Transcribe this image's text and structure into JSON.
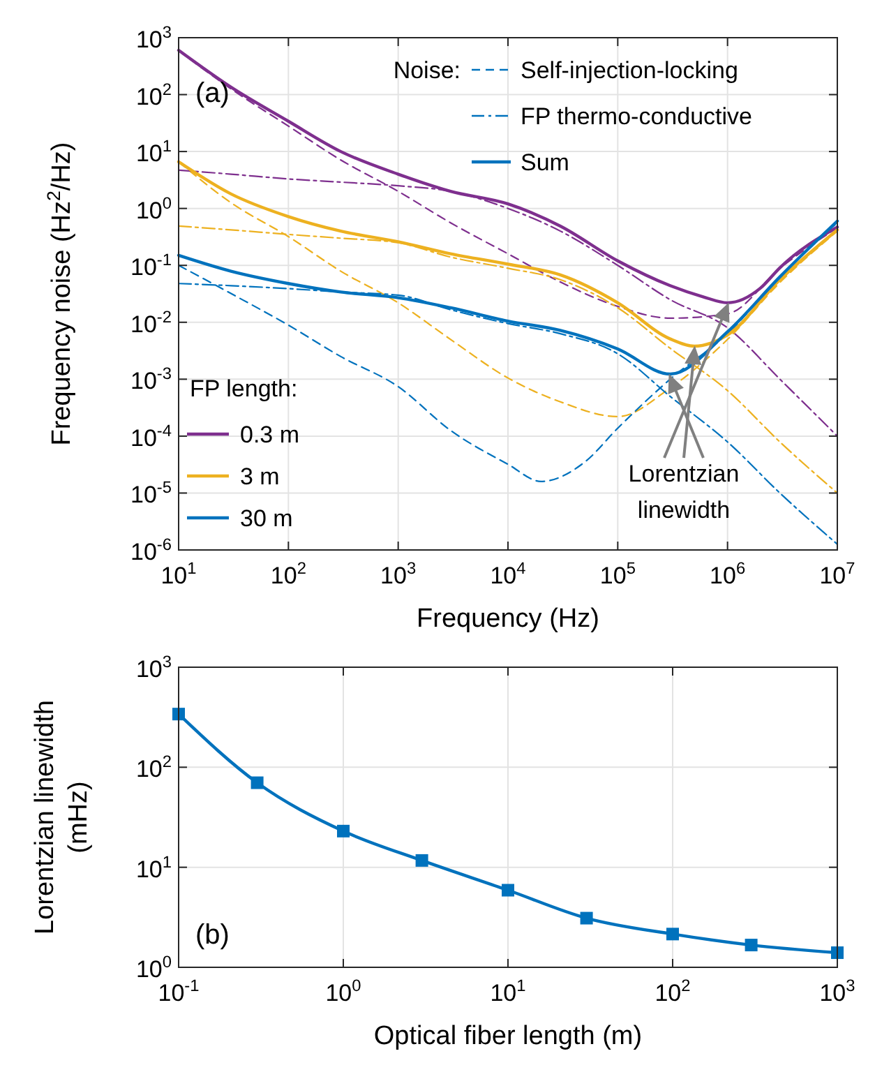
{
  "chart_data": [
    {
      "type": "line",
      "xlabel": "Frequency (Hz)",
      "ylabel": "Frequency noise (Hz$^{2}$/Hz)",
      "log": "xy",
      "grid": true,
      "legend": "bottom left",
      "xlim": [
        10,
        10000000
      ],
      "ylim": [
        1e-06,
        1000
      ],
      "xticks": [
        {
          "value": 10,
          "label": "10$^{1}$"
        },
        {
          "value": 100,
          "label": "10$^{2}$"
        },
        {
          "value": 1000,
          "label": "10$^{3}$"
        },
        {
          "value": 10000,
          "label": "10$^{4}$"
        },
        {
          "value": 100000,
          "label": "10$^{5}$"
        },
        {
          "value": 1000000,
          "label": "10$^{6}$"
        },
        {
          "value": 10000000,
          "label": "10$^{7}$"
        }
      ],
      "yticks": [
        {
          "value": 1e-06,
          "label": "10$^{-6}$"
        },
        {
          "value": 1e-05,
          "label": "10$^{-5}$"
        },
        {
          "value": 0.0001,
          "label": "10$^{-4}$"
        },
        {
          "value": 0.001,
          "label": "10$^{-3}$"
        },
        {
          "value": 0.01,
          "label": "10$^{-2}$"
        },
        {
          "value": 0.1,
          "label": "10$^{-1}$"
        },
        {
          "value": 1,
          "label": "10$^{0}$"
        },
        {
          "value": 10,
          "label": "10$^{1}$"
        },
        {
          "value": 100,
          "label": "10$^{2}$"
        },
        {
          "value": 1000,
          "label": "10$^{3}$"
        }
      ],
      "annotations": [
        "(a)",
        "Noise:",
        "Sum",
        "FP length:",
        "Lorentzian linewidth"
      ],
      "series": [
        {
          "color": "#7e2f8e",
          "line_style": "dashed",
          "x": [
            10,
            30,
            100,
            300,
            1000,
            3000,
            10000,
            30000,
            100000,
            300000,
            1000000,
            3000000,
            10000000
          ],
          "values": [
            590,
            126,
            28,
            7.1,
            2,
            0.56,
            0.16,
            0.051,
            0.019,
            0.0118,
            0.0141,
            0.089,
            0.46
          ]
        },
        {
          "color": "#edb120",
          "line_style": "dashed",
          "x": [
            10,
            30,
            100,
            300,
            1000,
            3000,
            10000,
            30000,
            100000,
            300000,
            1000000,
            3000000,
            10000000
          ],
          "values": [
            6.6,
            1.26,
            0.32,
            0.079,
            0.022,
            0.005,
            0.00105,
            0.0004,
            0.00022,
            0.0007,
            0.005,
            0.05,
            0.4
          ]
        },
        {
          "name": "Self-injection-locking",
          "color": "#0072bd",
          "line_style": "dashed",
          "x": [
            10,
            30,
            100,
            300,
            1000,
            3000,
            10000,
            20000,
            50000,
            100000,
            300000,
            1000000,
            3000000,
            10000000
          ],
          "values": [
            0.1,
            0.032,
            0.0089,
            0.0025,
            0.00074,
            0.000126,
            3.2e-05,
            1.6e-05,
            3.5e-05,
            0.000138,
            0.001,
            0.0063,
            0.063,
            0.56
          ]
        },
        {
          "color": "#7e2f8e",
          "line_style": "dashdot",
          "x": [
            10,
            30,
            100,
            300,
            1000,
            3000,
            10000,
            30000,
            100000,
            300000,
            1000000,
            3000000,
            10000000
          ],
          "values": [
            4.7,
            4,
            3.3,
            2.9,
            2.5,
            2,
            1,
            0.4,
            0.1,
            0.025,
            0.008,
            0.001,
            0.0001
          ]
        },
        {
          "color": "#edb120",
          "line_style": "dashdot",
          "x": [
            10,
            30,
            100,
            300,
            1000,
            3000,
            10000,
            30000,
            100000,
            300000,
            1000000,
            3000000,
            10000000
          ],
          "values": [
            0.49,
            0.42,
            0.35,
            0.3,
            0.25,
            0.14,
            0.089,
            0.056,
            0.018,
            0.0035,
            0.00063,
            7.9e-05,
            1e-05
          ]
        },
        {
          "name": "FP thermo-conductive",
          "color": "#0072bd",
          "line_style": "dashdot",
          "x": [
            10,
            30,
            100,
            300,
            1000,
            3000,
            10000,
            30000,
            100000,
            300000,
            1000000,
            3000000,
            10000000
          ],
          "values": [
            0.048,
            0.044,
            0.039,
            0.034,
            0.03,
            0.0166,
            0.0095,
            0.0063,
            0.0028,
            0.0005,
            7.9e-05,
            1e-05,
            1.26e-06
          ]
        },
        {
          "name": "0.3 m",
          "color": "#7e2f8e",
          "line_style": "solid",
          "x": [
            10,
            30,
            100,
            300,
            1000,
            3000,
            10000,
            30000,
            100000,
            300000,
            600000,
            1000000,
            2000000,
            3000000,
            10000000
          ],
          "values": [
            600,
            135,
            34,
            10,
            4,
            2,
            1.2,
            0.49,
            0.12,
            0.044,
            0.028,
            0.022,
            0.04,
            0.091,
            0.47
          ]
        },
        {
          "name": "3 m",
          "color": "#edb120",
          "line_style": "solid",
          "x": [
            10,
            30,
            100,
            300,
            1000,
            3000,
            10000,
            30000,
            100000,
            300000,
            500000,
            1000000,
            3000000,
            10000000
          ],
          "values": [
            6.6,
            1.8,
            0.72,
            0.4,
            0.26,
            0.16,
            0.105,
            0.068,
            0.022,
            0.0051,
            0.0038,
            0.006,
            0.056,
            0.42
          ]
        },
        {
          "name": "30 m",
          "color": "#0072bd",
          "line_style": "solid",
          "x": [
            10,
            30,
            100,
            300,
            1000,
            3000,
            10000,
            30000,
            100000,
            300000,
            1000000,
            3000000,
            10000000
          ],
          "values": [
            0.15,
            0.079,
            0.048,
            0.034,
            0.027,
            0.018,
            0.0105,
            0.0072,
            0.0034,
            0.00123,
            0.0068,
            0.063,
            0.6
          ]
        }
      ]
    },
    {
      "type": "line",
      "xlabel": "Optical fiber length (m)",
      "ylabel": "Lorentzian linewidth (mHz)",
      "log": "xy",
      "grid": true,
      "marker": "square",
      "xlim": [
        0.1,
        1000
      ],
      "ylim": [
        1,
        1000
      ],
      "xticks": [
        {
          "value": 0.1,
          "label": "10$^{-1}$"
        },
        {
          "value": 1,
          "label": "10$^{0}$"
        },
        {
          "value": 10,
          "label": "10$^{1}$"
        },
        {
          "value": 100,
          "label": "10$^{2}$"
        },
        {
          "value": 1000,
          "label": "10$^{3}$"
        }
      ],
      "yticks": [
        {
          "value": 1,
          "label": "10$^{0}$"
        },
        {
          "value": 10,
          "label": "10$^{1}$"
        },
        {
          "value": 100,
          "label": "10$^{2}$"
        },
        {
          "value": 1000,
          "label": "10$^{3}$"
        }
      ],
      "annotations": [
        "(b)"
      ],
      "series": [
        {
          "color": "#0072bd",
          "x": [
            0.1,
            0.3,
            1,
            3,
            10,
            30,
            100,
            300,
            1000
          ],
          "values": [
            340,
            70,
            23,
            11.7,
            5.9,
            3.1,
            2.15,
            1.67,
            1.4
          ]
        }
      ]
    }
  ]
}
